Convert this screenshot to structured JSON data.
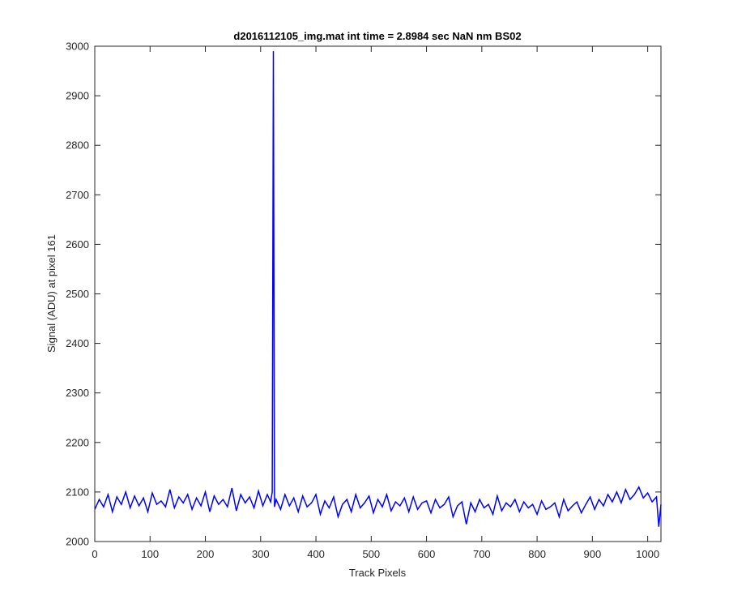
{
  "chart_data": {
    "type": "line",
    "title": "d2016112105_img.mat int time = 2.8984 sec  NaN nm BS02",
    "xlabel": "Track Pixels",
    "ylabel": "Signal (ADU) at pixel 161",
    "xlim": [
      0,
      1024
    ],
    "ylim": [
      2000,
      3000
    ],
    "xticks": [
      0,
      100,
      200,
      300,
      400,
      500,
      600,
      700,
      800,
      900,
      1000
    ],
    "yticks": [
      2000,
      2100,
      2200,
      2300,
      2400,
      2500,
      2600,
      2700,
      2800,
      2900,
      3000
    ],
    "xtick_labels": [
      "0",
      "100",
      "200",
      "300",
      "400",
      "500",
      "600",
      "700",
      "800",
      "900",
      "1000"
    ],
    "ytick_labels": [
      "2000",
      "2100",
      "2200",
      "2300",
      "2400",
      "2500",
      "2600",
      "2700",
      "2800",
      "2900",
      "3000"
    ],
    "grid": false,
    "box": true,
    "series": [
      {
        "color": "#0000ff",
        "x": [
          0,
          8,
          16,
          24,
          32,
          40,
          48,
          56,
          64,
          72,
          80,
          88,
          96,
          104,
          112,
          120,
          128,
          136,
          144,
          152,
          160,
          168,
          176,
          184,
          192,
          200,
          208,
          216,
          224,
          232,
          240,
          248,
          256,
          264,
          272,
          280,
          288,
          296,
          304,
          312,
          318,
          321,
          323,
          325,
          328,
          336,
          344,
          352,
          360,
          368,
          376,
          384,
          392,
          400,
          408,
          416,
          424,
          432,
          440,
          448,
          456,
          464,
          472,
          480,
          488,
          496,
          504,
          512,
          520,
          528,
          536,
          544,
          552,
          560,
          568,
          576,
          584,
          592,
          600,
          608,
          616,
          624,
          632,
          640,
          648,
          656,
          664,
          672,
          680,
          688,
          696,
          704,
          712,
          720,
          728,
          736,
          744,
          752,
          760,
          768,
          776,
          784,
          792,
          800,
          808,
          816,
          824,
          832,
          840,
          848,
          856,
          864,
          872,
          880,
          888,
          896,
          904,
          912,
          920,
          928,
          936,
          944,
          952,
          960,
          968,
          976,
          984,
          992,
          1000,
          1008,
          1016,
          1020,
          1024
        ],
        "y": [
          2065,
          2085,
          2070,
          2095,
          2060,
          2090,
          2075,
          2100,
          2068,
          2092,
          2072,
          2088,
          2060,
          2098,
          2075,
          2082,
          2070,
          2105,
          2068,
          2090,
          2078,
          2095,
          2065,
          2088,
          2072,
          2100,
          2060,
          2092,
          2075,
          2085,
          2070,
          2108,
          2062,
          2095,
          2078,
          2090,
          2068,
          2102,
          2072,
          2095,
          2080,
          2100,
          2990,
          2070,
          2085,
          2065,
          2095,
          2072,
          2088,
          2060,
          2092,
          2070,
          2078,
          2095,
          2055,
          2082,
          2068,
          2090,
          2050,
          2075,
          2085,
          2060,
          2095,
          2068,
          2078,
          2092,
          2058,
          2085,
          2070,
          2095,
          2062,
          2080,
          2072,
          2088,
          2060,
          2090,
          2065,
          2078,
          2082,
          2058,
          2085,
          2068,
          2075,
          2090,
          2050,
          2072,
          2080,
          2035,
          2078,
          2060,
          2085,
          2068,
          2075,
          2055,
          2092,
          2062,
          2078,
          2070,
          2085,
          2060,
          2080,
          2068,
          2075,
          2055,
          2082,
          2065,
          2070,
          2078,
          2050,
          2085,
          2062,
          2072,
          2080,
          2058,
          2075,
          2090,
          2065,
          2085,
          2072,
          2095,
          2080,
          2100,
          2078,
          2105,
          2085,
          2095,
          2110,
          2088,
          2098,
          2080,
          2090,
          2030,
          2075
        ]
      }
    ]
  }
}
